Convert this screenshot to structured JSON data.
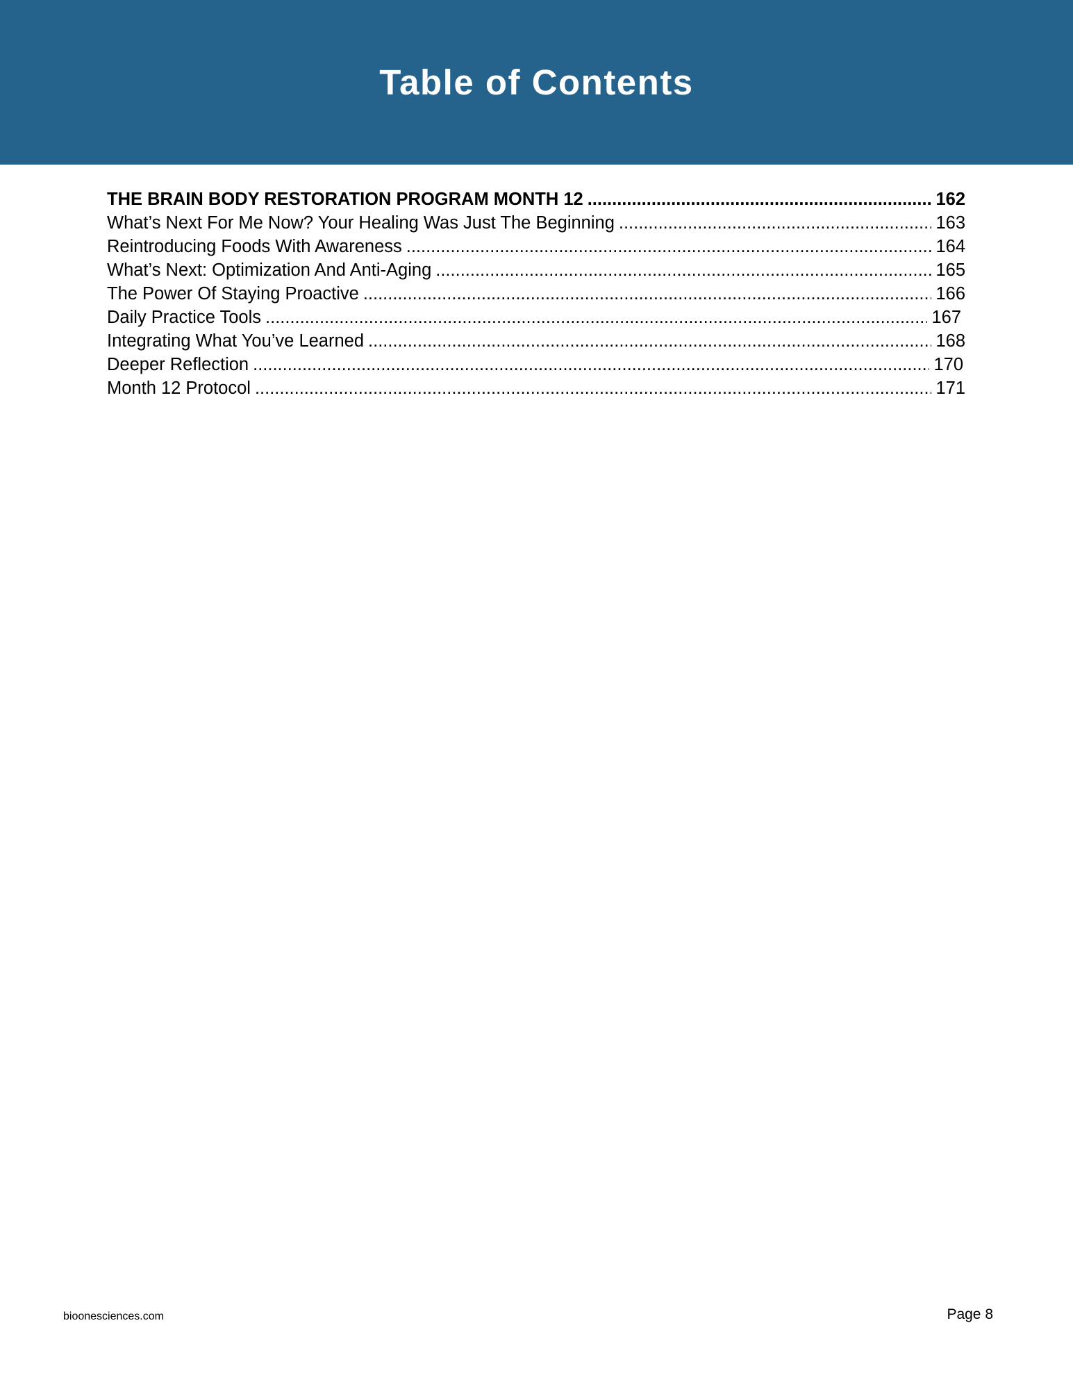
{
  "header": {
    "title": "Table of Contents",
    "background_color": "#25638c"
  },
  "toc": [
    {
      "label": "THE BRAIN BODY RESTORATION PROGRAM MONTH 12",
      "page": "162",
      "bold": true
    },
    {
      "label": "What’s Next For Me Now? Your Healing Was Just The Beginning",
      "page": "163"
    },
    {
      "label": "Reintroducing Foods With Awareness",
      "page": "164"
    },
    {
      "label": "What’s Next: Optimization And Anti-Aging",
      "page": "165"
    },
    {
      "label": "The Power Of Staying Proactive",
      "page": "166"
    },
    {
      "label": "Daily Practice Tools",
      "page": "167"
    },
    {
      "label": "Integrating What You’ve Learned",
      "page": "168"
    },
    {
      "label": "Deeper Reflection",
      "page": "170"
    },
    {
      "label": "Month 12 Protocol",
      "page": "171"
    }
  ],
  "footer": {
    "website": "bioonesciences.com",
    "page_label": "Page 8"
  }
}
